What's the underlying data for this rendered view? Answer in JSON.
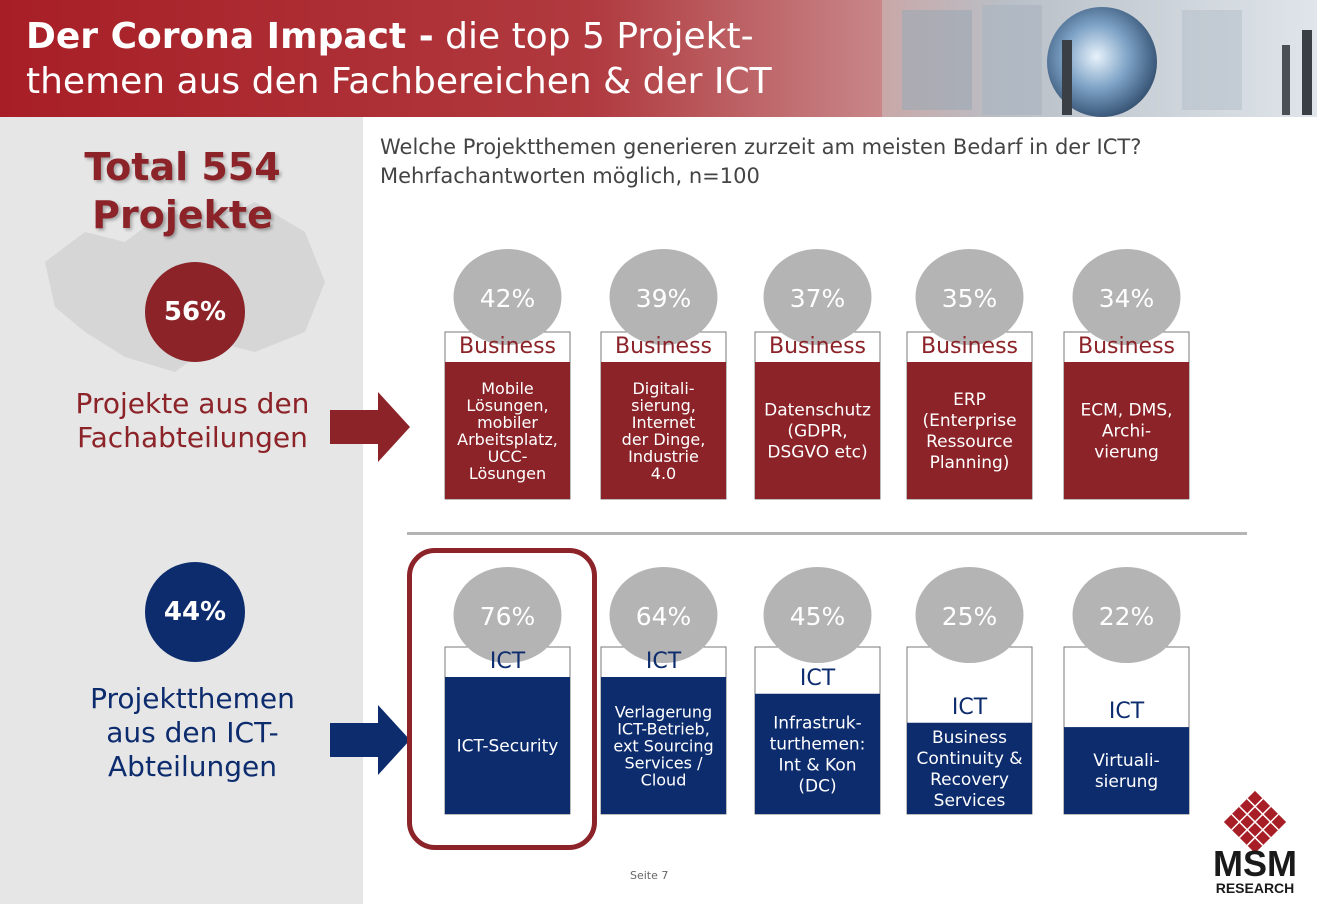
{
  "header": {
    "title_bold": "Der Corona Impact -",
    "title_rest_line1": "die top 5 Projekt-",
    "title_line2": "themen aus den Fachbereichen & der ICT"
  },
  "left_panel": {
    "total_line1": "Total 554",
    "total_line2": "Projekte",
    "business_share": "56%",
    "business_label_line1": "Projekte aus den",
    "business_label_line2": "Fachabteilungen",
    "ict_share": "44%",
    "ict_label_line1": "Projektthemen",
    "ict_label_line2": "aus den ICT-",
    "ict_label_line3": "Abteilungen"
  },
  "question": {
    "line1": "Welche Projektthemen generieren zurzeit am meisten Bedarf in der ICT?",
    "line2": "Mehrfachantworten möglich, n=100"
  },
  "page_number": "Seite  7",
  "logo": {
    "line1": "MSM",
    "line2": "RESEARCH"
  },
  "colors": {
    "business": "#8b2328",
    "ict": "#0d2c6e",
    "bubble": "#b4b4b4"
  },
  "chart_data": [
    {
      "type": "bar",
      "group": "Business",
      "categories": [
        [
          "Mobile",
          "Lösungen,",
          "mobiler",
          "Arbeitsplatz,",
          "UCC-",
          "Lösungen"
        ],
        [
          "Digitali-",
          "sierung,",
          "Internet",
          "der Dinge,",
          "Industrie",
          "4.0"
        ],
        [
          "Datenschutz",
          "(GDPR,",
          "DSGVO etc)"
        ],
        [
          "ERP",
          "(Enterprise",
          "Ressource",
          "Planning)"
        ],
        [
          "ECM, DMS,",
          "Archi-",
          "vierung"
        ]
      ],
      "values": [
        42,
        39,
        37,
        35,
        34
      ],
      "value_labels": [
        "42%",
        "39%",
        "37%",
        "35%",
        "34%"
      ],
      "box_label": "Business"
    },
    {
      "type": "bar",
      "group": "ICT",
      "categories": [
        [
          "ICT-Security"
        ],
        [
          "Verlagerung",
          "ICT-Betrieb,",
          "ext Sourcing",
          "Services /",
          "Cloud"
        ],
        [
          "Infrastruk-",
          "turthemen:",
          "Int & Kon",
          "(DC)"
        ],
        [
          "Business",
          "Continuity &",
          "Recovery",
          "Services"
        ],
        [
          "Virtuali-",
          "sierung"
        ]
      ],
      "values": [
        76,
        64,
        45,
        25,
        22
      ],
      "value_labels": [
        "76%",
        "64%",
        "45%",
        "25%",
        "22%"
      ],
      "box_label": "ICT",
      "highlighted_index": 0
    }
  ]
}
